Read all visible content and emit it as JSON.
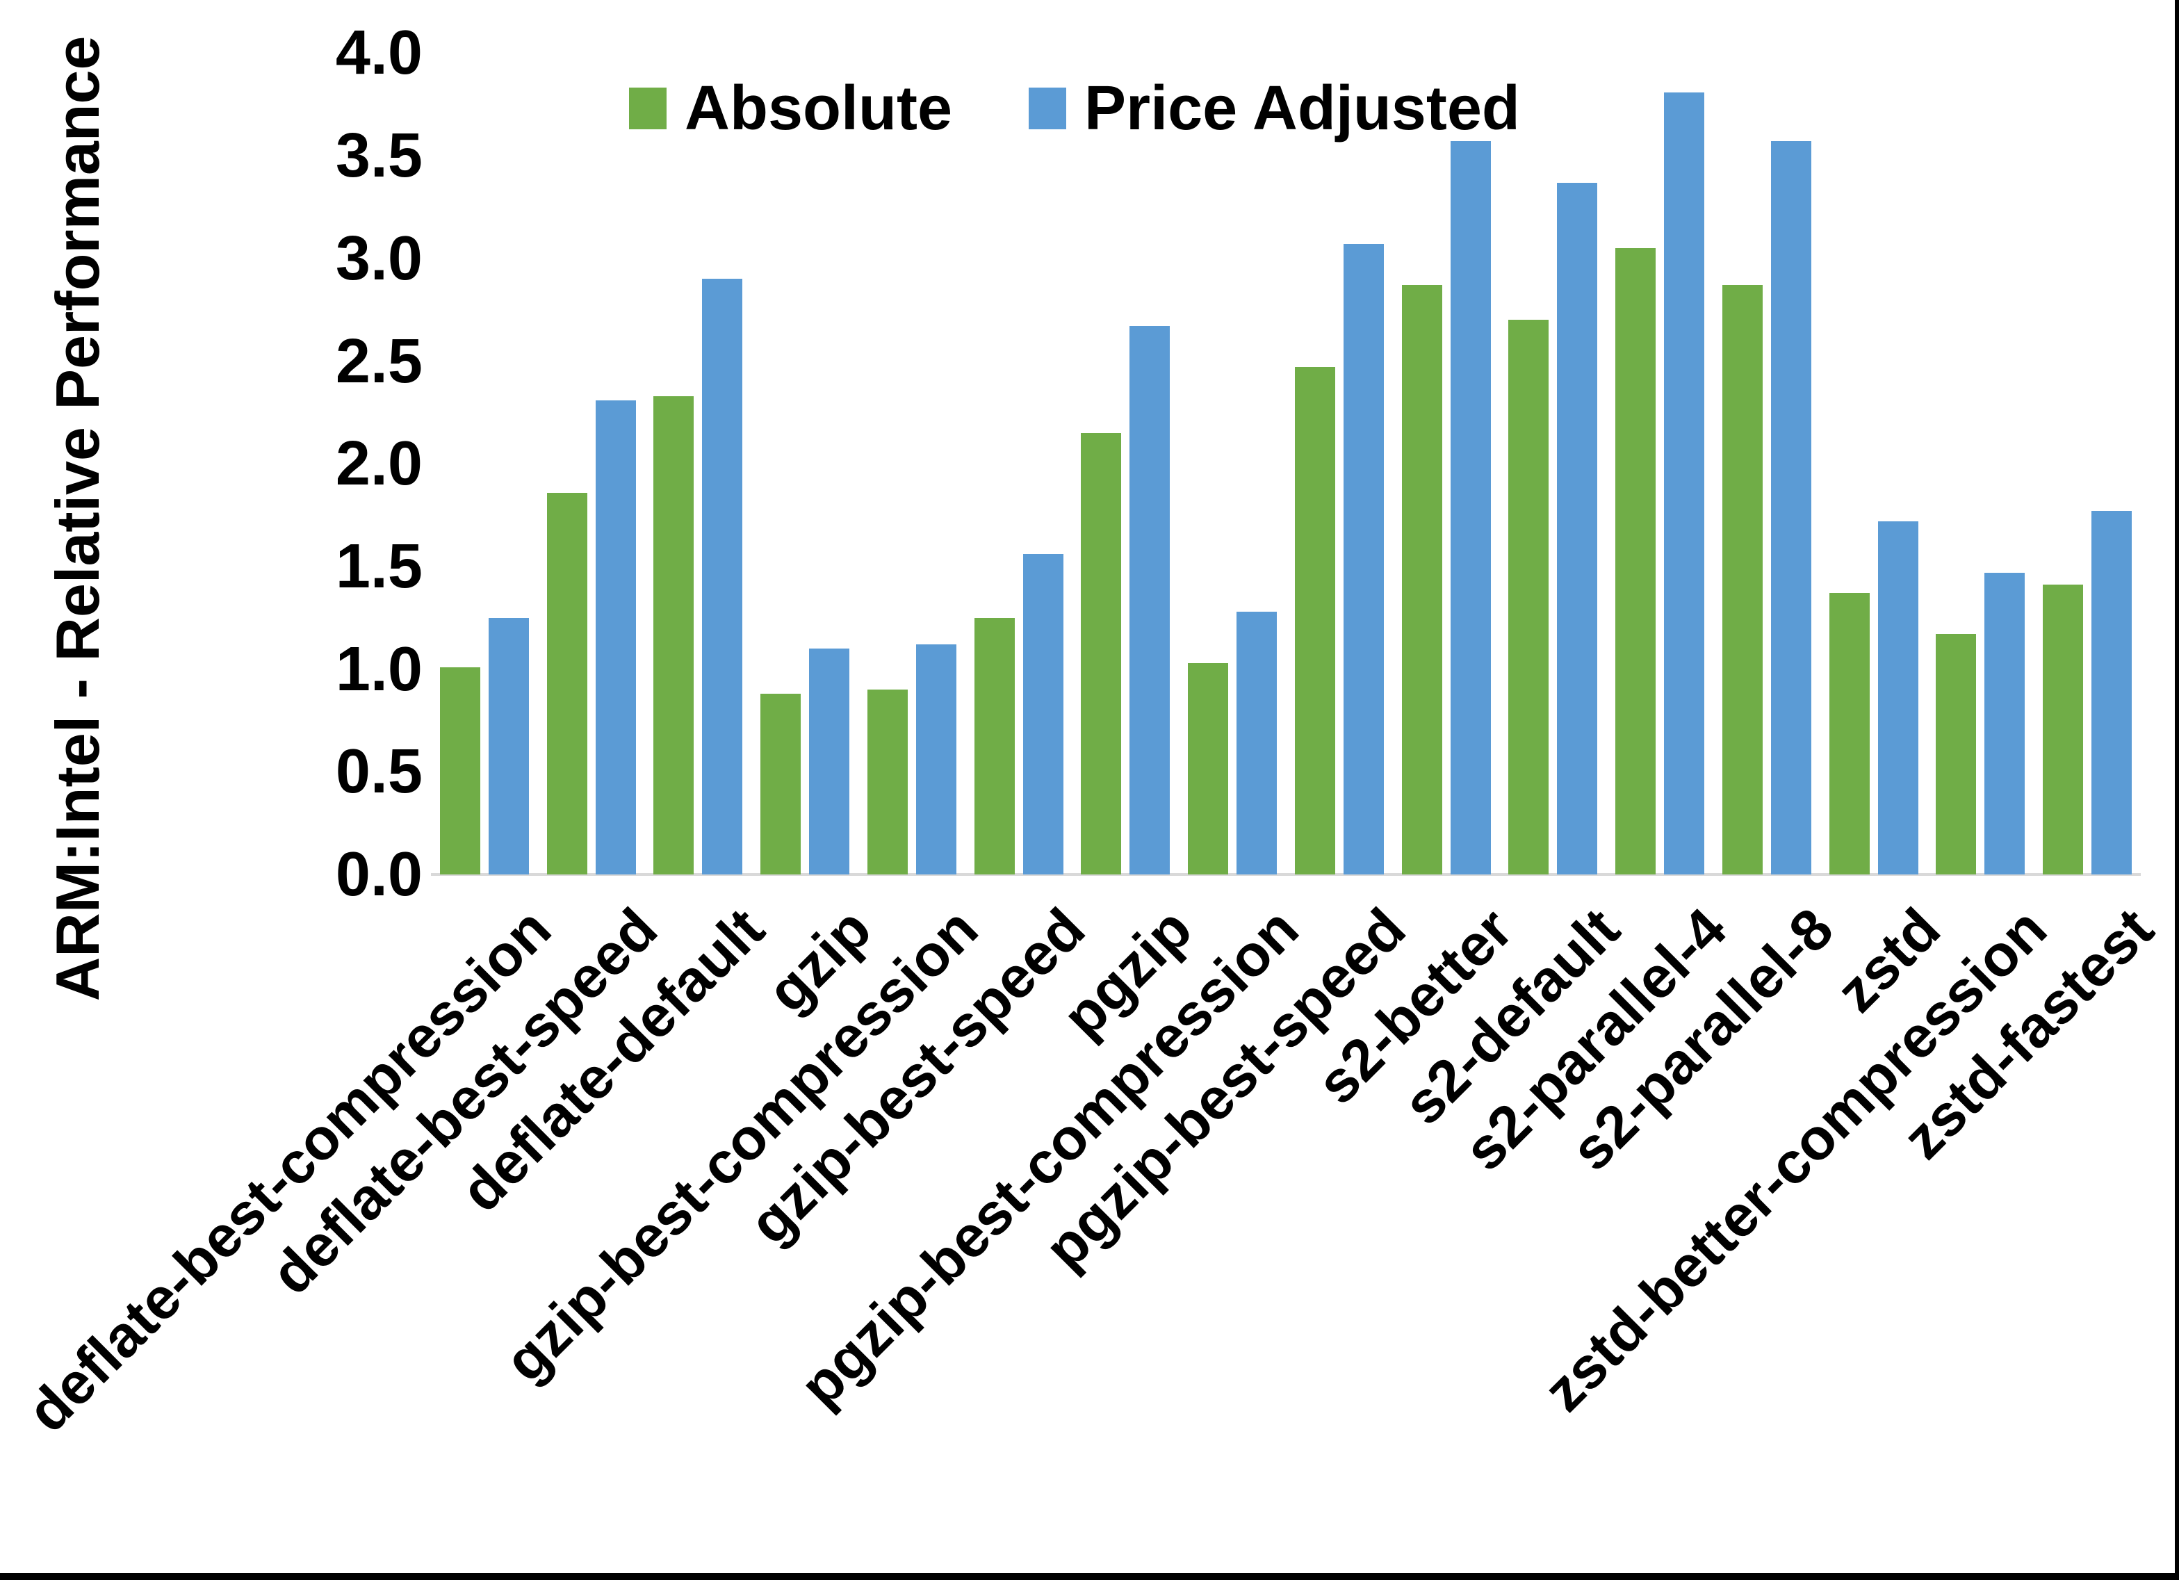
{
  "y_axis": {
    "title": "ARM:Intel - Relative Performance",
    "ticks": [
      "0.0",
      "0.5",
      "1.0",
      "1.5",
      "2.0",
      "2.5",
      "3.0",
      "3.5",
      "4.0"
    ]
  },
  "chart_data": {
    "type": "bar",
    "title": "",
    "xlabel": "",
    "ylabel": "ARM:Intel - Relative Performance",
    "ylim": [
      0,
      4.0
    ],
    "y_tick_step": 0.5,
    "grid": false,
    "legend_position": "top",
    "background_color": "#ffffff",
    "axis_line_color": "#d9d9d9",
    "categories": [
      "deflate-best-compression",
      "deflate-best-speed",
      "deflate-default",
      "gzip",
      "gzip-best-compression",
      "gzip-best-speed",
      "pgzip",
      "pgzip-best-compression",
      "pgzip-best-speed",
      "s2-better",
      "s2-default",
      "s2-parallel-4",
      "s2-parallel-8",
      "zstd",
      "zstd-better-compression",
      "zstd-fastest"
    ],
    "series": [
      {
        "name": "Absolute",
        "color": "#70AD47",
        "values": [
          1.01,
          1.86,
          2.33,
          0.88,
          0.9,
          1.25,
          2.15,
          1.03,
          2.47,
          2.87,
          2.7,
          3.05,
          2.87,
          1.37,
          1.17,
          1.41
        ]
      },
      {
        "name": "Price Adjusted",
        "color": "#5B9BD5",
        "values": [
          1.25,
          2.31,
          2.9,
          1.1,
          1.12,
          1.56,
          2.67,
          1.28,
          3.07,
          3.57,
          3.37,
          3.81,
          3.57,
          1.72,
          1.47,
          1.77
        ]
      }
    ]
  }
}
